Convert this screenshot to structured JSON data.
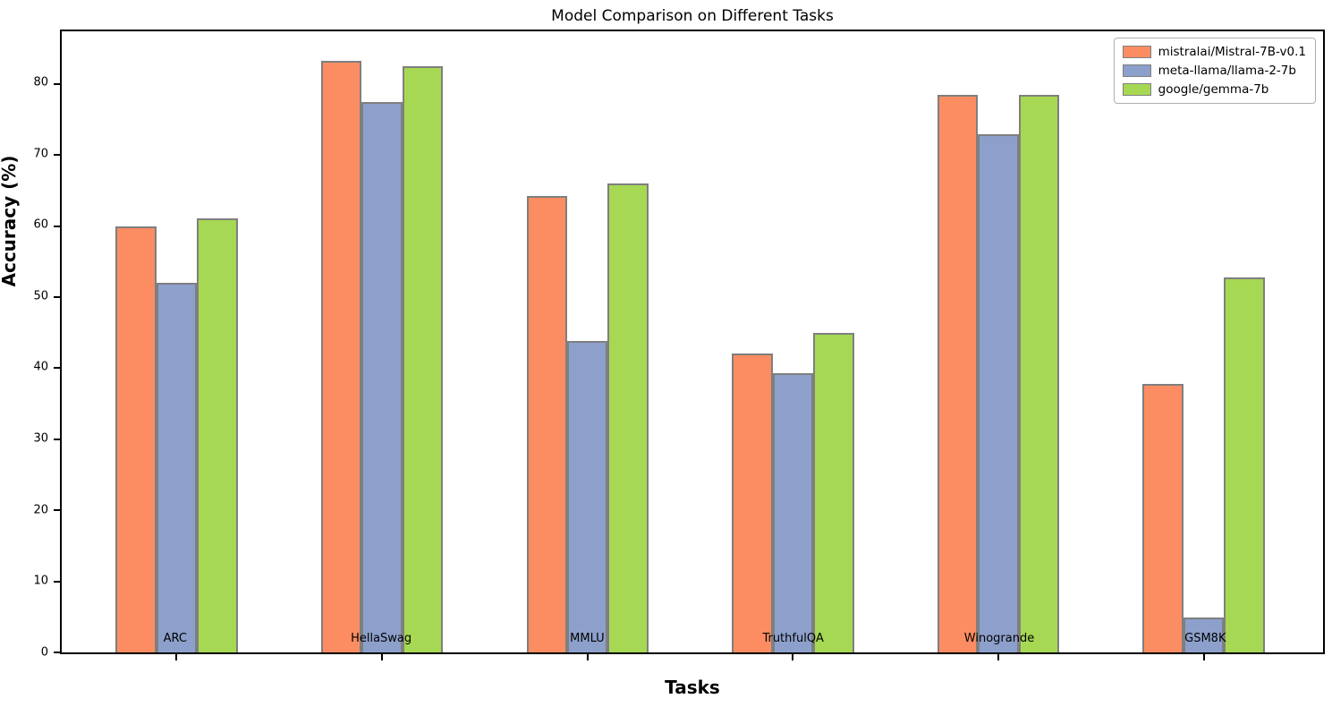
{
  "chart_data": {
    "type": "bar",
    "title": "Model Comparison on Different Tasks",
    "xlabel": "Tasks",
    "ylabel": "Accuracy (%)",
    "categories": [
      "ARC",
      "HellaSwag",
      "MMLU",
      "TruthfulQA",
      "Winogrande",
      "GSM8K"
    ],
    "series": [
      {
        "name": "mistralai/Mistral-7B-v0.1",
        "color": "#fc8d62",
        "values": [
          60.0,
          83.3,
          64.2,
          42.1,
          78.4,
          37.8
        ]
      },
      {
        "name": "meta-llama/llama-2-7b",
        "color": "#8da0cb",
        "values": [
          52.0,
          77.4,
          43.8,
          39.3,
          72.9,
          4.9
        ]
      },
      {
        "name": "google/gemma-7b",
        "color": "#a6d854",
        "values": [
          61.1,
          82.5,
          66.0,
          44.9,
          78.5,
          52.8
        ]
      }
    ],
    "ylim": [
      0,
      87.4
    ],
    "yticks": [
      0,
      10,
      20,
      30,
      40,
      50,
      60,
      70,
      80
    ],
    "bar_edge_color": "#7f7f7f",
    "axis_color": "#000000",
    "legend_position": "upper right",
    "grid": false
  }
}
